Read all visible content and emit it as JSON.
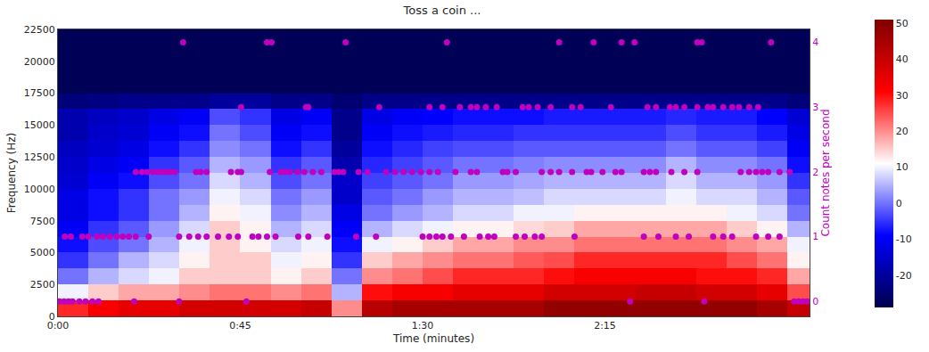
{
  "chart_data": {
    "type": "heatmap",
    "title": "Toss a coin ...",
    "xlabel": "Time (minutes)",
    "ylabel": "Frequency (Hz)",
    "y2label": "Count notes per second",
    "xlim": [
      0,
      185.5
    ],
    "xticks": [
      {
        "value": 0,
        "label": "0:00"
      },
      {
        "value": 45,
        "label": "0:45"
      },
      {
        "value": 90,
        "label": "1:30"
      },
      {
        "value": 135,
        "label": "2:15"
      }
    ],
    "ylim": [
      0,
      22500
    ],
    "yticks": [
      0,
      2500,
      5000,
      7500,
      10000,
      12500,
      15000,
      17500,
      20000,
      22500
    ],
    "y2lim": [
      -0.23,
      4.2
    ],
    "y2ticks": [
      0,
      1,
      2,
      3,
      4
    ],
    "grid": false,
    "heatmap": {
      "x": [
        3.75,
        11.25,
        18.75,
        26.25,
        33.75,
        41.25,
        48.75,
        56.25,
        63.75,
        71.25,
        78.75,
        86.25,
        93.75,
        101.25,
        108.75,
        116.25,
        123.75,
        131.25,
        138.75,
        146.25,
        153.75,
        161.25,
        168.75,
        176.25,
        183.75
      ],
      "y": [
        625,
        1875,
        3125,
        4375,
        5625,
        6875,
        8125,
        9375,
        10625,
        11875,
        13125,
        14375,
        15625,
        16875,
        18125,
        19375,
        20625,
        21875
      ],
      "z": [
        [
          28,
          32,
          35,
          35,
          38,
          38,
          38,
          38,
          40,
          20,
          42,
          45,
          45,
          45,
          45,
          45,
          48,
          48,
          48,
          48,
          48,
          48,
          48,
          45,
          40
        ],
        [
          10,
          15,
          18,
          18,
          20,
          22,
          22,
          20,
          22,
          5,
          30,
          32,
          32,
          35,
          35,
          35,
          38,
          38,
          38,
          40,
          40,
          38,
          38,
          35,
          25
        ],
        [
          0,
          5,
          8,
          10,
          15,
          15,
          15,
          12,
          15,
          0,
          20,
          22,
          25,
          28,
          28,
          28,
          30,
          32,
          32,
          32,
          32,
          30,
          30,
          28,
          18
        ],
        [
          -5,
          0,
          5,
          8,
          12,
          15,
          15,
          10,
          12,
          -5,
          15,
          18,
          20,
          22,
          22,
          24,
          25,
          28,
          28,
          28,
          28,
          28,
          25,
          22,
          12
        ],
        [
          -8,
          -3,
          0,
          5,
          10,
          15,
          12,
          8,
          10,
          -8,
          10,
          12,
          15,
          18,
          18,
          20,
          20,
          22,
          22,
          22,
          22,
          22,
          20,
          18,
          10
        ],
        [
          -10,
          -5,
          -2,
          3,
          8,
          15,
          12,
          5,
          8,
          -10,
          5,
          8,
          10,
          12,
          12,
          14,
          15,
          18,
          18,
          18,
          18,
          18,
          15,
          12,
          5
        ],
        [
          -12,
          -8,
          -5,
          0,
          5,
          12,
          10,
          2,
          5,
          -12,
          0,
          3,
          5,
          8,
          8,
          10,
          10,
          12,
          12,
          12,
          12,
          12,
          10,
          8,
          0
        ],
        [
          -12,
          -8,
          -5,
          0,
          3,
          10,
          8,
          0,
          3,
          -15,
          -2,
          0,
          3,
          5,
          5,
          6,
          8,
          8,
          8,
          8,
          10,
          8,
          8,
          5,
          -2
        ],
        [
          -14,
          -10,
          -8,
          -3,
          0,
          8,
          5,
          -3,
          0,
          -15,
          -4,
          -2,
          0,
          3,
          3,
          4,
          5,
          5,
          5,
          5,
          8,
          5,
          5,
          3,
          -5
        ],
        [
          -15,
          -12,
          -10,
          -5,
          -2,
          5,
          3,
          -5,
          -2,
          -18,
          -6,
          -4,
          -2,
          0,
          0,
          1,
          2,
          2,
          2,
          2,
          5,
          2,
          2,
          0,
          -8
        ],
        [
          -16,
          -14,
          -12,
          -8,
          -5,
          2,
          0,
          -8,
          -5,
          -20,
          -8,
          -6,
          -4,
          -3,
          -3,
          -2,
          -2,
          -2,
          -2,
          -2,
          0,
          -2,
          -2,
          -4,
          -10
        ],
        [
          -18,
          -15,
          -14,
          -10,
          -8,
          0,
          -3,
          -10,
          -8,
          -22,
          -10,
          -8,
          -7,
          -6,
          -6,
          -5,
          -5,
          -5,
          -5,
          -5,
          -3,
          -5,
          -5,
          -7,
          -12
        ],
        [
          -18,
          -16,
          -15,
          -12,
          -10,
          -3,
          -5,
          -12,
          -10,
          -22,
          -12,
          -10,
          -9,
          -8,
          -8,
          -8,
          -7,
          -7,
          -7,
          -7,
          -6,
          -7,
          -7,
          -9,
          -14
        ],
        [
          -24,
          -23,
          -22,
          -22,
          -22,
          -20,
          -20,
          -22,
          -22,
          -25,
          -22,
          -22,
          -22,
          -22,
          -22,
          -22,
          -22,
          -22,
          -22,
          -22,
          -22,
          -22,
          -22,
          -22,
          -24
        ],
        [
          -28,
          -28,
          -28,
          -28,
          -28,
          -28,
          -28,
          -28,
          -28,
          -28,
          -28,
          -28,
          -28,
          -28,
          -28,
          -28,
          -28,
          -28,
          -28,
          -28,
          -28,
          -28,
          -28,
          -28,
          -28
        ],
        [
          -28,
          -28,
          -28,
          -28,
          -28,
          -28,
          -28,
          -28,
          -28,
          -28,
          -28,
          -28,
          -28,
          -28,
          -28,
          -28,
          -28,
          -28,
          -28,
          -28,
          -28,
          -28,
          -28,
          -28,
          -28
        ],
        [
          -28,
          -28,
          -28,
          -28,
          -28,
          -28,
          -28,
          -28,
          -28,
          -28,
          -28,
          -28,
          -28,
          -28,
          -28,
          -28,
          -28,
          -28,
          -28,
          -28,
          -28,
          -28,
          -28,
          -28,
          -28
        ],
        [
          -28,
          -28,
          -28,
          -28,
          -28,
          -28,
          -28,
          -28,
          -28,
          -28,
          -28,
          -28,
          -28,
          -28,
          -28,
          -28,
          -28,
          -28,
          -28,
          -28,
          -28,
          -28,
          -28,
          -28,
          -28
        ]
      ],
      "colorbar": {
        "range": [
          -29,
          51
        ],
        "ticks": [
          -20,
          -10,
          0,
          10,
          20,
          30,
          40,
          50
        ]
      }
    },
    "series": [
      {
        "type": "scatter",
        "axis": "y2",
        "color": "#bf00bf",
        "marker": "circle",
        "x": [
          0.4,
          1.5,
          2.6,
          3.6,
          5.3,
          6.8,
          8.5,
          10.0,
          18.8,
          29.9,
          46.5,
          141.2,
          159.5,
          181.7,
          182.8,
          183.9,
          184.9,
          1.7,
          3.2,
          6.0,
          7.5,
          9.6,
          11.1,
          12.8,
          14.5,
          16.0,
          17.5,
          19.2,
          22.4,
          29.9,
          32.4,
          34.6,
          36.7,
          39.5,
          42.2,
          44.4,
          48.0,
          49.5,
          51.6,
          53.7,
          59.3,
          61.8,
          66.5,
          73.6,
          78.5,
          90.0,
          91.7,
          93.4,
          94.9,
          97.0,
          100.2,
          104.1,
          106.2,
          107.7,
          113.0,
          115.2,
          117.7,
          119.4,
          127.5,
          144.6,
          148.2,
          152.5,
          155.7,
          161.7,
          164.2,
          166.4,
          172.3,
          175.3,
          178.1,
          19.2,
          20.7,
          22.0,
          23.5,
          24.5,
          25.6,
          26.7,
          27.7,
          28.8,
          34.1,
          35.2,
          36.7,
          42.7,
          44.4,
          45.2,
          52.3,
          55.0,
          56.1,
          57.2,
          59.1,
          60.8,
          62.9,
          65.0,
          68.2,
          69.3,
          70.4,
          74.2,
          76.4,
          81.0,
          83.2,
          85.3,
          87.4,
          89.6,
          91.7,
          93.8,
          98.1,
          101.9,
          103.4,
          109.8,
          110.9,
          113.0,
          119.4,
          121.6,
          123.7,
          126.9,
          130.5,
          131.6,
          134.4,
          137.6,
          139.1,
          144.6,
          146.1,
          147.6,
          151.4,
          154.6,
          157.8,
          168.5,
          170.6,
          172.3,
          173.8,
          175.3,
          178.1,
          180.6,
          45.2,
          61.2,
          61.8,
          79.3,
          91.7,
          94.9,
          99.2,
          101.9,
          103.4,
          105.6,
          108.3,
          114.7,
          116.2,
          118.4,
          121.6,
          126.9,
          129.0,
          136.5,
          145.5,
          147.6,
          151.0,
          152.5,
          154.6,
          157.8,
          160.4,
          161.7,
          164.2,
          166.4,
          168.1,
          170.6,
          172.8,
          30.9,
          51.6,
          52.7,
          71.0,
          96.0,
          123.7,
          132.2,
          139.1,
          142.3,
          157.8,
          158.9,
          176.0
        ],
        "values": [
          0,
          0,
          0,
          0,
          0,
          0,
          0,
          0,
          0,
          0,
          0,
          0,
          0,
          0,
          0,
          0,
          0,
          1,
          1,
          1,
          1,
          1,
          1,
          1,
          1,
          1,
          1,
          1,
          1,
          1,
          1,
          1,
          1,
          1,
          1,
          1,
          1,
          1,
          1,
          1,
          1,
          1,
          1,
          1,
          1,
          1,
          1,
          1,
          1,
          1,
          1,
          1,
          1,
          1,
          1,
          1,
          1,
          1,
          1,
          1,
          1,
          1,
          1,
          1,
          1,
          1,
          1,
          1,
          1,
          2,
          2,
          2,
          2,
          2,
          2,
          2,
          2,
          2,
          2,
          2,
          2,
          2,
          2,
          2,
          2,
          2,
          2,
          2,
          2,
          2,
          2,
          2,
          2,
          2,
          2,
          2,
          2,
          2,
          2,
          2,
          2,
          2,
          2,
          2,
          2,
          2,
          2,
          2,
          2,
          2,
          2,
          2,
          2,
          2,
          2,
          2,
          2,
          2,
          2,
          2,
          2,
          2,
          2,
          2,
          2,
          2,
          2,
          2,
          2,
          2,
          2,
          2,
          3,
          3,
          3,
          3,
          3,
          3,
          3,
          3,
          3,
          3,
          3,
          3,
          3,
          3,
          3,
          3,
          3,
          3,
          3,
          3,
          3,
          3,
          3,
          3,
          3,
          3,
          3,
          3,
          3,
          3,
          3,
          4,
          4,
          4,
          4,
          4,
          4,
          4,
          4,
          4,
          4,
          4,
          4
        ]
      }
    ]
  }
}
